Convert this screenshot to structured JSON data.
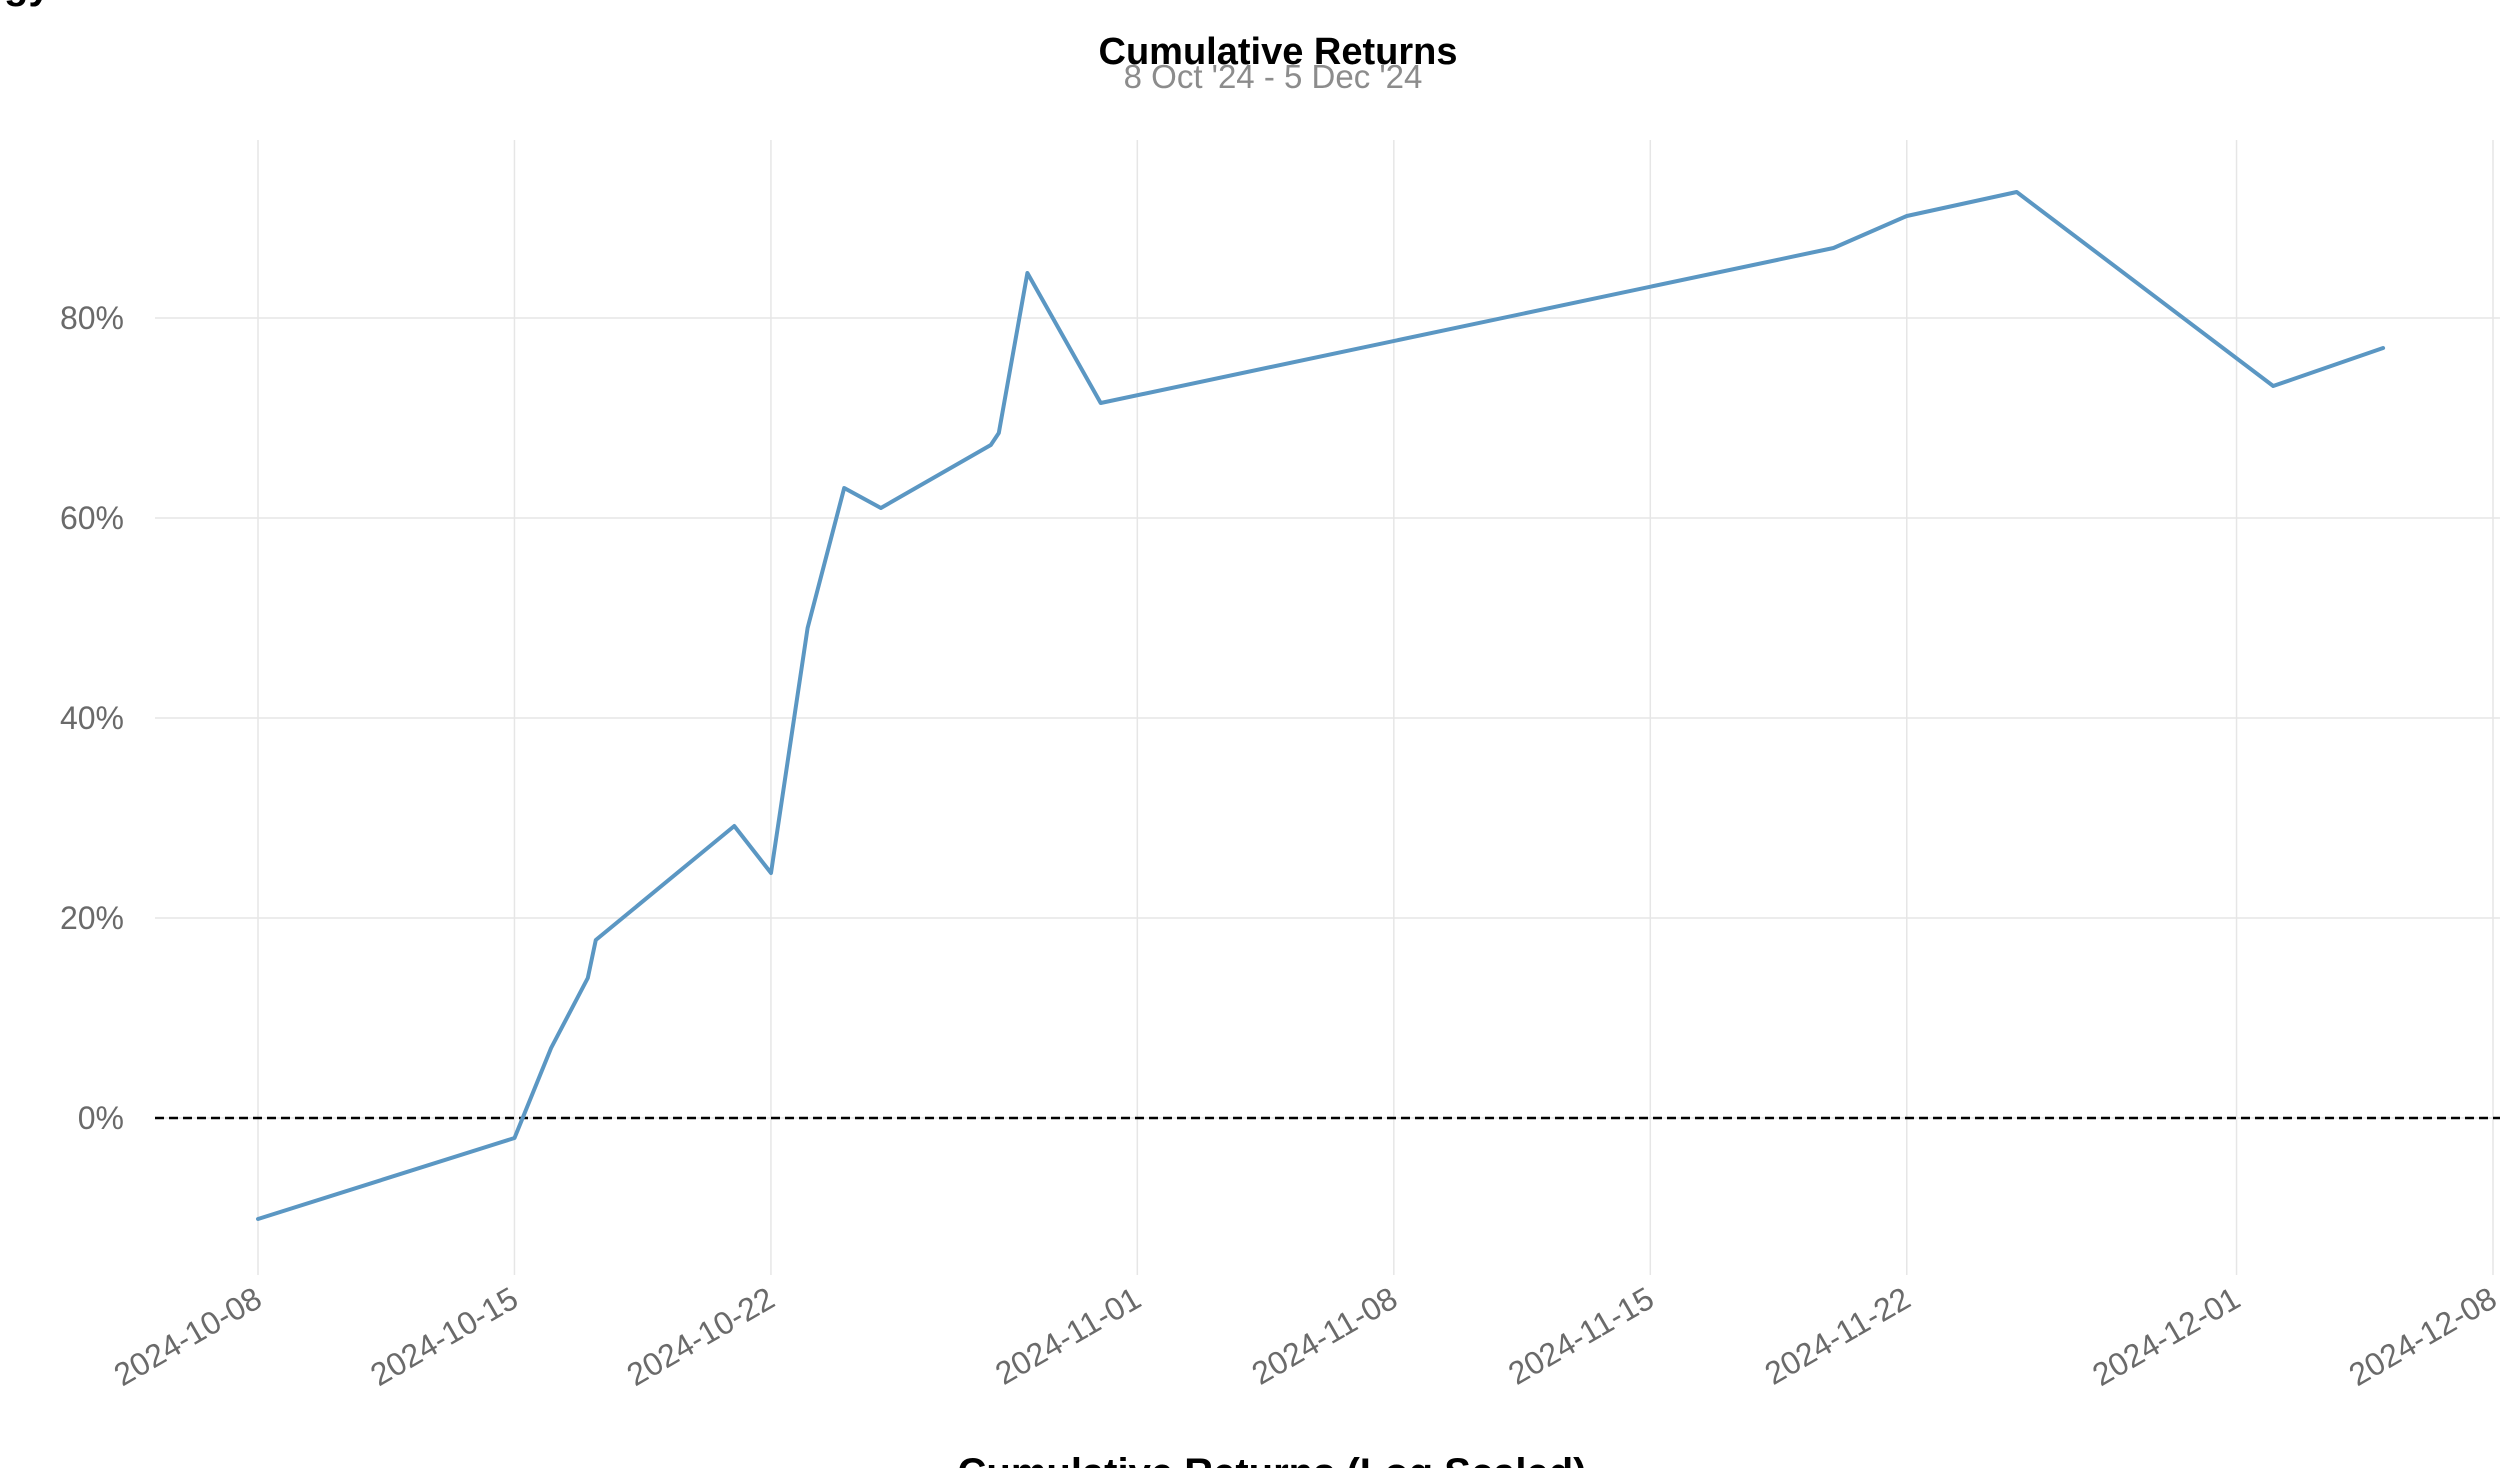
{
  "chart_data": {
    "type": "line",
    "title": "Cumulative Returns",
    "subtitle": "8 Oct '24 -  5 Dec '24",
    "xlabel": "",
    "ylabel": "",
    "top_cutoff_text": "gy",
    "bottom_cutoff_text": "Cumulative Returns (Log Scaled)",
    "colors": {
      "line": "#5b97c3",
      "grid": "#e6e6e6",
      "baseline": "#000000"
    },
    "grid": true,
    "baseline_y": 0,
    "xlim": [
      "2024-10-08",
      "2024-12-08"
    ],
    "ylim": [
      -15,
      98
    ],
    "x_ticks": [
      "2024-10-08",
      "2024-10-15",
      "2024-10-22",
      "2024-11-01",
      "2024-11-08",
      "2024-11-15",
      "2024-11-22",
      "2024-12-01",
      "2024-12-08"
    ],
    "y_ticks": [
      {
        "value": 0,
        "label": "0%"
      },
      {
        "value": 20,
        "label": "20%"
      },
      {
        "value": 40,
        "label": "40%"
      },
      {
        "value": 60,
        "label": "60%"
      },
      {
        "value": 80,
        "label": "80%"
      }
    ],
    "series": [
      {
        "values": [
          {
            "x": "2024-10-08",
            "y": -10.1
          },
          {
            "x": "2024-10-15",
            "y": -2.0
          },
          {
            "x": "2024-10-16",
            "y": 7.0
          },
          {
            "x": "2024-10-17",
            "y": 14.0
          },
          {
            "x": "2024-10-17",
            "y": 17.8
          },
          {
            "x": "2024-10-21",
            "y": 29.2
          },
          {
            "x": "2024-10-22",
            "y": 24.5
          },
          {
            "x": "2024-10-23",
            "y": 49.0
          },
          {
            "x": "2024-10-24",
            "y": 63.0
          },
          {
            "x": "2024-10-25",
            "y": 61.0
          },
          {
            "x": "2024-10-28",
            "y": 67.3
          },
          {
            "x": "2024-10-28",
            "y": 68.5
          },
          {
            "x": "2024-10-29",
            "y": 84.5
          },
          {
            "x": "2024-10-31",
            "y": 71.5
          },
          {
            "x": "2024-11-20",
            "y": 87.0
          },
          {
            "x": "2024-11-22",
            "y": 90.2
          },
          {
            "x": "2024-11-25",
            "y": 92.6
          },
          {
            "x": "2024-12-02",
            "y": 73.2
          },
          {
            "x": "2024-12-05",
            "y": 77.0
          }
        ]
      }
    ]
  }
}
